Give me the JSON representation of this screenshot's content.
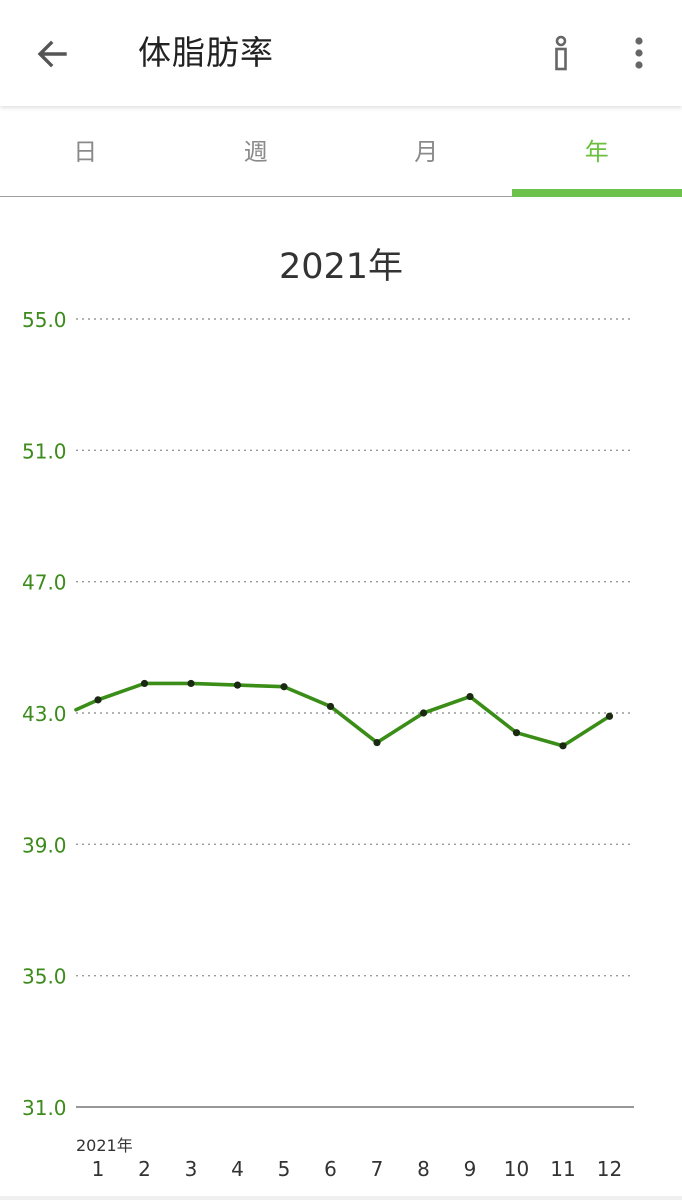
{
  "header": {
    "title": "体脂肪率",
    "back_icon": "arrow-back-icon",
    "info_icon": "info-icon",
    "more_icon": "more-vert-icon"
  },
  "tabs": [
    {
      "label": "日",
      "active": false
    },
    {
      "label": "週",
      "active": false
    },
    {
      "label": "月",
      "active": false
    },
    {
      "label": "年",
      "active": true
    }
  ],
  "colors": {
    "accent": "#6cc24a",
    "axis_label": "#3d8b1c",
    "line": "#3a8d16",
    "point": "#1a2a12"
  },
  "chart_data": {
    "type": "line",
    "title": "2021年",
    "x_prefix_label": "2021年",
    "x": [
      1,
      2,
      3,
      4,
      5,
      6,
      7,
      8,
      9,
      10,
      11,
      12
    ],
    "series": [
      {
        "values": [
          43.4,
          43.9,
          43.9,
          43.85,
          43.8,
          43.2,
          42.1,
          43.0,
          43.5,
          42.4,
          42.0,
          42.9
        ]
      }
    ],
    "line_start_value": 43.1,
    "yticks": [
      "55.0",
      "51.0",
      "47.0",
      "43.0",
      "39.0",
      "35.0",
      "31.0"
    ],
    "ylim": [
      31.0,
      55.0
    ],
    "grid": true
  }
}
